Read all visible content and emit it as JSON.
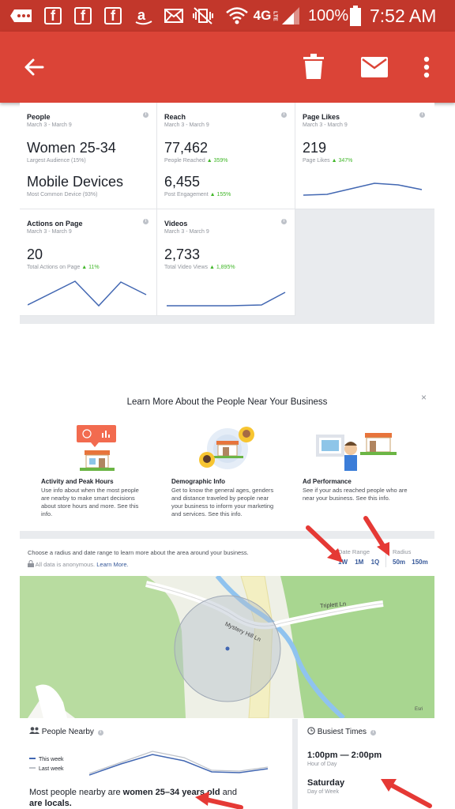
{
  "status_bar": {
    "battery_percent": "100%",
    "time": "7:52 AM",
    "network": "4G",
    "network_sub": "LTE"
  },
  "app_bar": {
    "back_icon": "arrow-left",
    "delete_icon": "trash",
    "mail_icon": "envelope",
    "menu_icon": "more-vertical"
  },
  "insights": {
    "cards": [
      {
        "title": "People",
        "date": "March 3 - March 9",
        "value1": "Women 25-34",
        "caption1": "Largest Audience (15%)",
        "value2": "Mobile Devices",
        "caption2": "Most Common Device (93%)"
      },
      {
        "title": "Reach",
        "date": "March 3 - March 9",
        "value1": "77,462",
        "caption1": "People Reached",
        "change1": "▲ 359%",
        "value2": "6,455",
        "caption2": "Post Engagement",
        "change2": "▲ 155%"
      },
      {
        "title": "Page Likes",
        "date": "March 3 - March 9",
        "value1": "219",
        "caption1": "Page Likes",
        "change1": "▲ 347%"
      },
      {
        "title": "Actions on Page",
        "date": "March 3 - March 9",
        "value1": "20",
        "caption1": "Total Actions on Page",
        "change1": "▲ 11%"
      },
      {
        "title": "Videos",
        "date": "March 3 - March 9",
        "value1": "2,733",
        "caption1": "Total Video Views",
        "change1": "▲ 1,895%"
      }
    ]
  },
  "learn_more": {
    "title": "Learn More About the People Near Your Business",
    "close": "×",
    "columns": [
      {
        "heading": "Activity and Peak Hours",
        "lines": [
          "Use info about when the most people",
          "are nearby to make smart decisions",
          "about store hours and more. See this",
          "info."
        ]
      },
      {
        "heading": "Demographic Info",
        "lines": [
          "Get to know the general ages, genders",
          "and distance traveled by people near",
          "your business to inform your marketing",
          "and services. See this info."
        ]
      },
      {
        "heading": "Ad Performance",
        "lines": [
          "See if your ads reached people who are",
          "near your business. See this info."
        ]
      }
    ]
  },
  "filters": {
    "instructions": "Choose a radius and date range to learn more about the area around your business.",
    "anonymous": "All data is anonymous.",
    "learn_more_link": "Learn More.",
    "date_range_label": "Date Range",
    "date_options": [
      "1W",
      "1M",
      "1Q"
    ],
    "radius_label": "Radius",
    "radius_options": [
      "50m",
      "150m"
    ]
  },
  "map": {
    "streets": [
      "Triplett Ln",
      "Mystery Hill Ln"
    ],
    "attribution": "Esri"
  },
  "people_nearby": {
    "title": "People Nearby",
    "legend": [
      "This week",
      "Last week"
    ],
    "summary_prefix": "Most people nearby are ",
    "summary_bold": "women 25–34 years old",
    "summary_mid": " and",
    "summary_bold2": "are locals."
  },
  "busiest_times": {
    "title": "Busiest Times",
    "time_value": "1:00pm — 2:00pm",
    "time_caption": "Hour of Day",
    "day_value": "Saturday",
    "day_caption": "Day of Week"
  },
  "colors": {
    "status_bar": "#c2372b",
    "app_bar": "#db4437",
    "link": "#365899",
    "positive": "#42b72a",
    "chart_line": "#4267b2",
    "annotation_arrow": "#e53935"
  }
}
